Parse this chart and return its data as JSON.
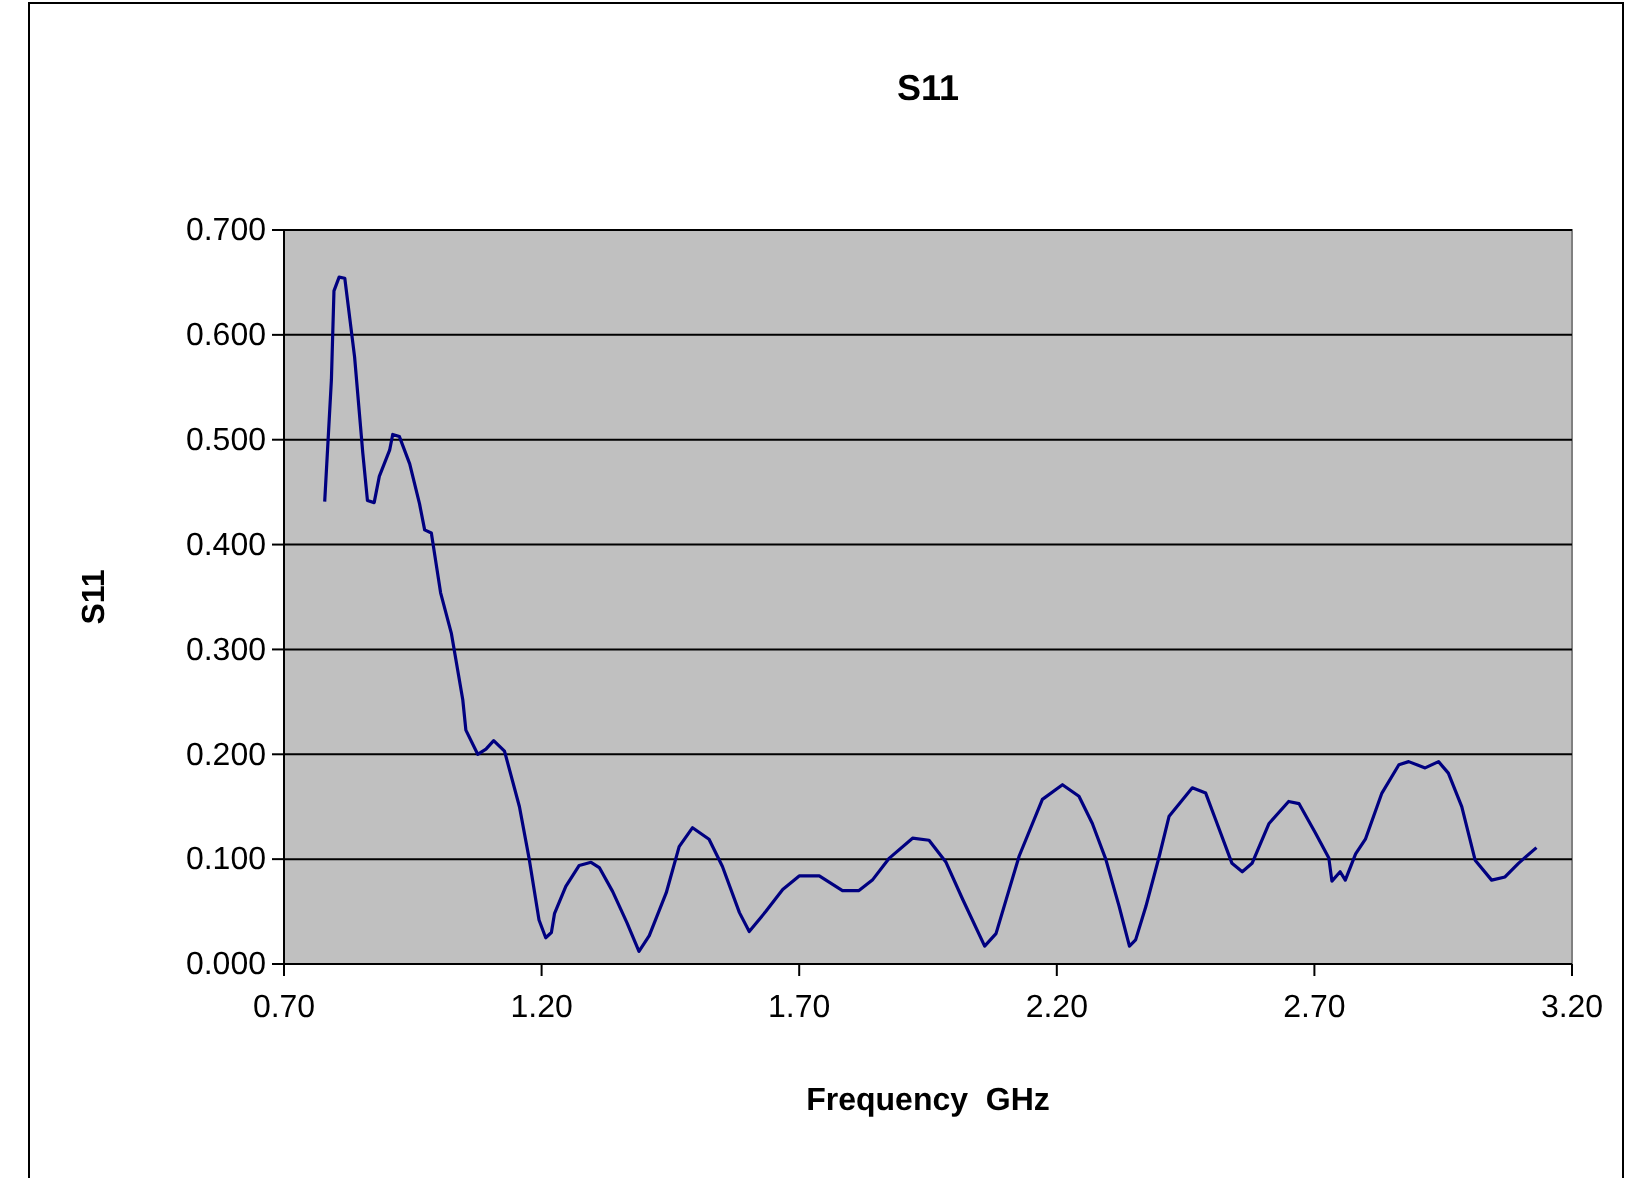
{
  "chart_data": {
    "type": "line",
    "title": "S11",
    "xlabel": "Frequency  GHz",
    "ylabel": "S11",
    "xlim": [
      0.7,
      3.2
    ],
    "xticks": [
      {
        "value": 0.7,
        "label": "0.70"
      },
      {
        "value": 1.2,
        "label": "1.20"
      },
      {
        "value": 1.7,
        "label": "1.70"
      },
      {
        "value": 2.2,
        "label": "2.20"
      },
      {
        "value": 2.7,
        "label": "2.70"
      },
      {
        "value": 3.2,
        "label": "3.20"
      }
    ],
    "ylim": [
      0,
      0.7
    ],
    "yticks": [
      {
        "value": 0,
        "label": "0.000"
      },
      {
        "value": 0.1,
        "label": "0.100"
      },
      {
        "value": 0.2,
        "label": "0.200"
      },
      {
        "value": 0.3,
        "label": "0.300"
      },
      {
        "value": 0.4,
        "label": "0.400"
      },
      {
        "value": 0.5,
        "label": "0.500"
      },
      {
        "value": 0.6,
        "label": "0.600"
      },
      {
        "value": 0.7,
        "label": "0.700"
      }
    ],
    "grid": "y",
    "marker": "none",
    "line_style": "solid",
    "x": [
      0.779,
      0.792,
      0.797,
      0.807,
      0.818,
      0.837,
      0.853,
      0.862,
      0.875,
      0.885,
      0.905,
      0.911,
      0.924,
      0.944,
      0.963,
      0.973,
      0.986,
      1.004,
      1.025,
      1.047,
      1.053,
      1.076,
      1.092,
      1.107,
      1.128,
      1.157,
      1.176,
      1.195,
      1.208,
      1.219,
      1.225,
      1.247,
      1.273,
      1.296,
      1.312,
      1.338,
      1.366,
      1.389,
      1.409,
      1.442,
      1.467,
      1.493,
      1.525,
      1.551,
      1.584,
      1.603,
      1.635,
      1.668,
      1.7,
      1.739,
      1.784,
      1.816,
      1.842,
      1.875,
      1.92,
      1.952,
      1.985,
      2.017,
      2.06,
      2.082,
      2.127,
      2.172,
      2.211,
      2.243,
      2.269,
      2.295,
      2.321,
      2.341,
      2.353,
      2.373,
      2.399,
      2.418,
      2.463,
      2.489,
      2.508,
      2.54,
      2.56,
      2.579,
      2.612,
      2.65,
      2.67,
      2.702,
      2.728,
      2.734,
      2.75,
      2.76,
      2.78,
      2.799,
      2.831,
      2.864,
      2.883,
      2.915,
      2.941,
      2.96,
      2.986,
      3.012,
      3.044,
      3.07,
      3.096,
      3.131
    ],
    "series": [
      {
        "color": "#000080",
        "values": [
          0.441,
          0.557,
          0.642,
          0.655,
          0.654,
          0.579,
          0.487,
          0.442,
          0.44,
          0.465,
          0.49,
          0.505,
          0.503,
          0.477,
          0.439,
          0.414,
          0.411,
          0.354,
          0.315,
          0.252,
          0.223,
          0.2,
          0.205,
          0.213,
          0.203,
          0.15,
          0.1,
          0.042,
          0.025,
          0.03,
          0.048,
          0.074,
          0.094,
          0.097,
          0.092,
          0.069,
          0.039,
          0.012,
          0.027,
          0.068,
          0.112,
          0.13,
          0.119,
          0.093,
          0.049,
          0.031,
          0.05,
          0.071,
          0.084,
          0.084,
          0.07,
          0.07,
          0.08,
          0.101,
          0.12,
          0.118,
          0.097,
          0.062,
          0.017,
          0.029,
          0.103,
          0.157,
          0.171,
          0.16,
          0.134,
          0.1,
          0.055,
          0.017,
          0.023,
          0.055,
          0.103,
          0.141,
          0.168,
          0.163,
          0.138,
          0.096,
          0.088,
          0.096,
          0.134,
          0.155,
          0.153,
          0.125,
          0.101,
          0.079,
          0.088,
          0.08,
          0.105,
          0.119,
          0.163,
          0.19,
          0.193,
          0.187,
          0.193,
          0.182,
          0.15,
          0.099,
          0.08,
          0.083,
          0.096,
          0.111
        ]
      }
    ]
  }
}
